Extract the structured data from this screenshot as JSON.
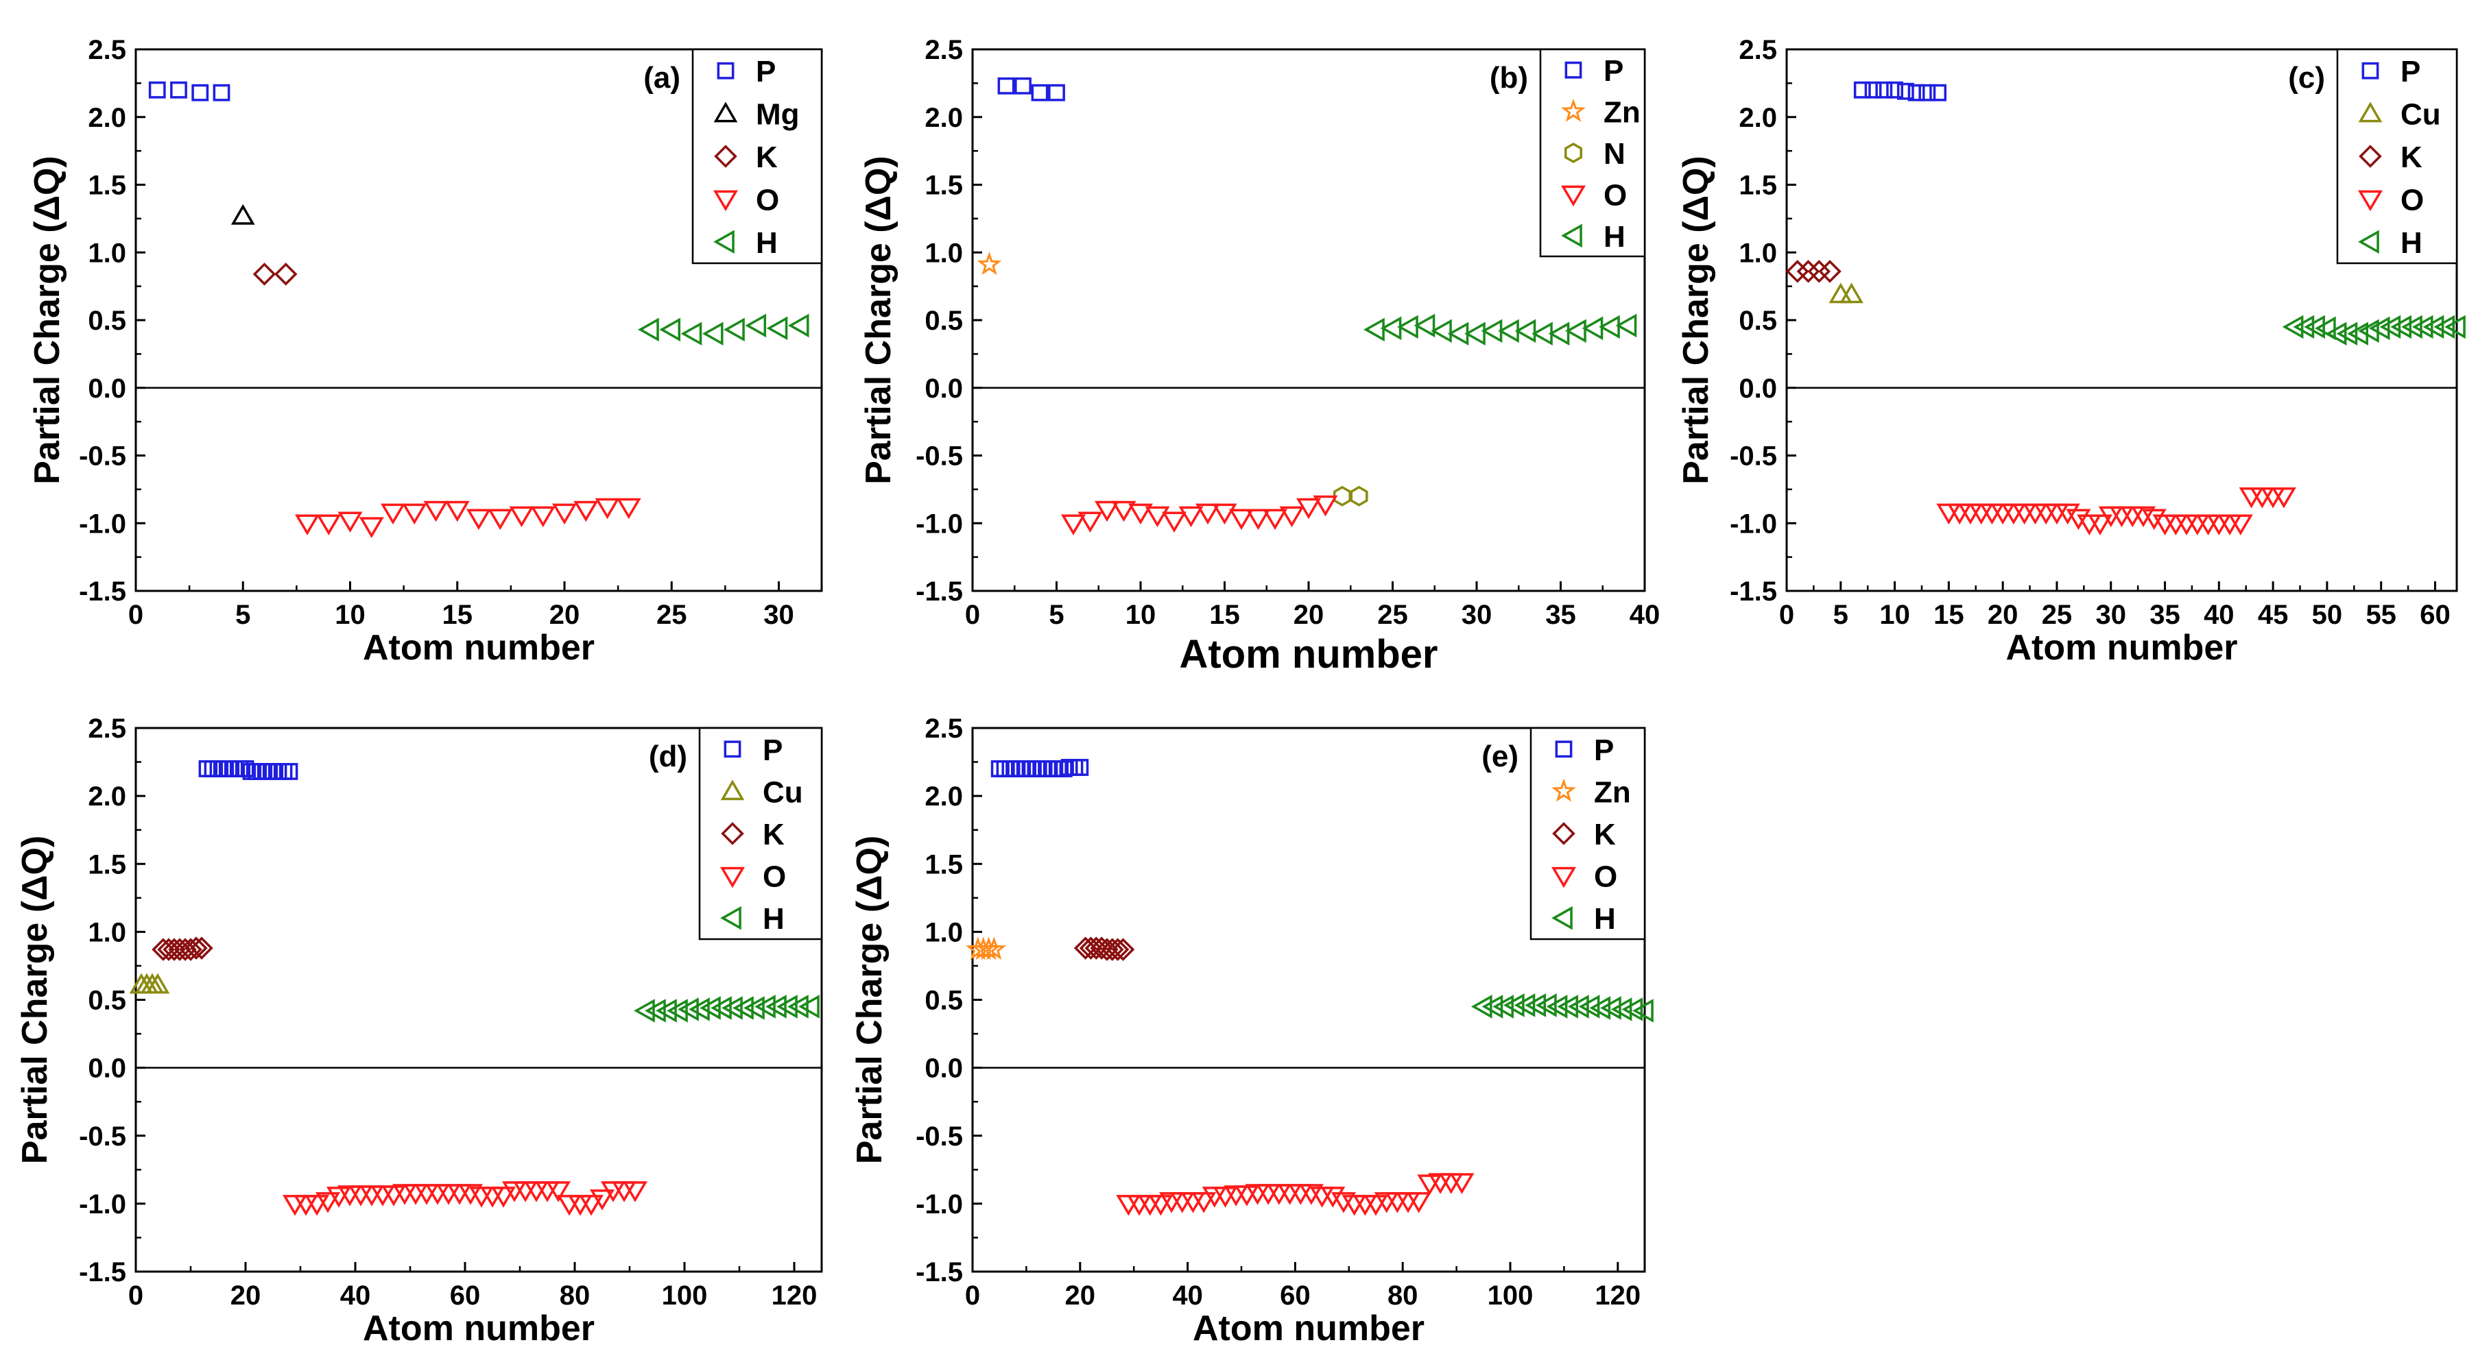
{
  "figure": "Partial charge per atom, five panels",
  "colors": {
    "P": "#1f1fe0",
    "Mg": "#000000",
    "K": "#8b1010",
    "O": "#ff1a1a",
    "H": "#1a8a1a",
    "Zn": "#ff8c1a",
    "N": "#8b8b10",
    "Cu": "#8b8b10"
  },
  "chart_data": [
    {
      "type": "scatter",
      "label": "(a)",
      "xlabel": "Atom number",
      "ylabel": "Partial Charge (ΔQ)",
      "xlim": [
        0,
        32
      ],
      "ylim": [
        -1.5,
        2.5
      ],
      "xticks": [
        0,
        5,
        10,
        15,
        20,
        25,
        30
      ],
      "yticks": [
        -1.5,
        -1.0,
        -0.5,
        0.0,
        0.5,
        1.0,
        1.5,
        2.0,
        2.5
      ],
      "legend": [
        "P",
        "Mg",
        "K",
        "O",
        "H"
      ],
      "series": [
        {
          "name": "P",
          "marker": "square",
          "x": [
            1,
            2,
            3,
            4
          ],
          "y": [
            2.2,
            2.2,
            2.18,
            2.18
          ]
        },
        {
          "name": "Mg",
          "marker": "triangle-up",
          "x": [
            5
          ],
          "y": [
            1.27
          ]
        },
        {
          "name": "K",
          "marker": "diamond",
          "x": [
            6,
            7
          ],
          "y": [
            0.84,
            0.84
          ]
        },
        {
          "name": "O",
          "marker": "triangle-down",
          "x": [
            8,
            9,
            10,
            11,
            12,
            13,
            14,
            15,
            16,
            17,
            18,
            19,
            20,
            21,
            22,
            23
          ],
          "y": [
            -1.0,
            -1.0,
            -0.98,
            -1.02,
            -0.92,
            -0.92,
            -0.9,
            -0.9,
            -0.96,
            -0.96,
            -0.94,
            -0.94,
            -0.92,
            -0.9,
            -0.88,
            -0.88
          ]
        },
        {
          "name": "H",
          "marker": "triangle-left",
          "x": [
            24,
            25,
            26,
            27,
            28,
            29,
            30,
            31
          ],
          "y": [
            0.43,
            0.43,
            0.4,
            0.4,
            0.43,
            0.46,
            0.44,
            0.46
          ]
        }
      ]
    },
    {
      "type": "scatter",
      "label": "(b)",
      "xlabel": "Atom number",
      "ylabel": "Partial Charge (ΔQ)",
      "xlim": [
        0,
        40
      ],
      "ylim": [
        -1.5,
        2.5
      ],
      "xticks": [
        0,
        5,
        10,
        15,
        20,
        25,
        30,
        35,
        40
      ],
      "yticks": [
        -1.5,
        -1.0,
        -0.5,
        0.0,
        0.5,
        1.0,
        1.5,
        2.0,
        2.5
      ],
      "legend": [
        "P",
        "Zn",
        "N",
        "O",
        "H"
      ],
      "series": [
        {
          "name": "P",
          "marker": "square",
          "x": [
            2,
            3,
            4,
            5
          ],
          "y": [
            2.23,
            2.23,
            2.18,
            2.18
          ]
        },
        {
          "name": "Zn",
          "marker": "star",
          "x": [
            1
          ],
          "y": [
            0.91
          ]
        },
        {
          "name": "N",
          "marker": "hexagon",
          "x": [
            22,
            23
          ],
          "y": [
            -0.8,
            -0.8
          ]
        },
        {
          "name": "O",
          "marker": "triangle-down",
          "x": [
            6,
            7,
            8,
            9,
            10,
            11,
            12,
            13,
            14,
            15,
            16,
            17,
            18,
            19,
            20,
            21
          ],
          "y": [
            -1.0,
            -0.98,
            -0.9,
            -0.9,
            -0.92,
            -0.94,
            -0.98,
            -0.94,
            -0.92,
            -0.92,
            -0.96,
            -0.96,
            -0.96,
            -0.94,
            -0.88,
            -0.86
          ]
        },
        {
          "name": "H",
          "marker": "triangle-left",
          "x": [
            24,
            25,
            26,
            27,
            28,
            29,
            30,
            31,
            32,
            33,
            34,
            35,
            36,
            37,
            38,
            39
          ],
          "y": [
            0.43,
            0.44,
            0.45,
            0.46,
            0.42,
            0.4,
            0.4,
            0.42,
            0.42,
            0.42,
            0.4,
            0.4,
            0.42,
            0.44,
            0.45,
            0.46
          ]
        }
      ]
    },
    {
      "type": "scatter",
      "label": "(c)",
      "xlabel": "Atom number",
      "ylabel": "Partial Charge (ΔQ)",
      "xlim": [
        0,
        62
      ],
      "ylim": [
        -1.5,
        2.5
      ],
      "xticks": [
        0,
        5,
        10,
        15,
        20,
        25,
        30,
        35,
        40,
        45,
        50,
        55,
        60
      ],
      "yticks": [
        -1.5,
        -1.0,
        -0.5,
        0.0,
        0.5,
        1.0,
        1.5,
        2.0,
        2.5
      ],
      "legend": [
        "P",
        "Cu",
        "K",
        "O",
        "H"
      ],
      "series": [
        {
          "name": "P",
          "marker": "square",
          "x": [
            7,
            8,
            9,
            10,
            11,
            12,
            13,
            14
          ],
          "y": [
            2.2,
            2.2,
            2.2,
            2.2,
            2.19,
            2.18,
            2.18,
            2.18
          ]
        },
        {
          "name": "Cu",
          "marker": "triangle-up",
          "x": [
            5,
            6
          ],
          "y": [
            0.69,
            0.69
          ]
        },
        {
          "name": "K",
          "marker": "diamond",
          "x": [
            1,
            2,
            3,
            4
          ],
          "y": [
            0.86,
            0.86,
            0.86,
            0.86
          ]
        },
        {
          "name": "O",
          "marker": "triangle-down",
          "x": [
            15,
            16,
            17,
            18,
            19,
            20,
            21,
            22,
            23,
            24,
            25,
            26,
            27,
            28,
            29,
            30,
            31,
            32,
            33,
            34,
            35,
            36,
            37,
            38,
            39,
            40,
            41,
            42,
            43,
            44,
            45,
            46
          ],
          "y": [
            -0.92,
            -0.92,
            -0.92,
            -0.92,
            -0.92,
            -0.92,
            -0.92,
            -0.92,
            -0.92,
            -0.92,
            -0.92,
            -0.92,
            -0.96,
            -1.0,
            -1.0,
            -0.94,
            -0.94,
            -0.94,
            -0.94,
            -0.96,
            -1.0,
            -1.0,
            -1.0,
            -1.0,
            -1.0,
            -1.0,
            -1.0,
            -1.0,
            -0.8,
            -0.8,
            -0.8,
            -0.8
          ]
        },
        {
          "name": "H",
          "marker": "triangle-left",
          "x": [
            47,
            48,
            49,
            50,
            51,
            52,
            53,
            54,
            55,
            56,
            57,
            58,
            59,
            60,
            61,
            62
          ],
          "y": [
            0.45,
            0.45,
            0.45,
            0.44,
            0.4,
            0.4,
            0.4,
            0.42,
            0.44,
            0.45,
            0.45,
            0.45,
            0.45,
            0.45,
            0.45,
            0.45
          ]
        }
      ]
    },
    {
      "type": "scatter",
      "label": "(d)",
      "xlabel": "Atom number",
      "ylabel": "Partial Charge (ΔQ)",
      "xlim": [
        0,
        125
      ],
      "ylim": [
        -1.5,
        2.5
      ],
      "xticks": [
        0,
        20,
        40,
        60,
        80,
        100,
        120
      ],
      "yticks": [
        -1.5,
        -1.0,
        -0.5,
        0.0,
        0.5,
        1.0,
        1.5,
        2.0,
        2.5
      ],
      "legend": [
        "P",
        "Cu",
        "K",
        "O",
        "H"
      ],
      "series": [
        {
          "name": "P",
          "marker": "square",
          "x": [
            13,
            14,
            15,
            16,
            17,
            18,
            19,
            20,
            21,
            22,
            23,
            24,
            25,
            26,
            27,
            28
          ],
          "y": [
            2.2,
            2.2,
            2.2,
            2.2,
            2.2,
            2.2,
            2.2,
            2.2,
            2.18,
            2.18,
            2.18,
            2.18,
            2.18,
            2.18,
            2.18,
            2.18
          ]
        },
        {
          "name": "Cu",
          "marker": "triangle-up",
          "x": [
            1,
            2,
            3,
            4
          ],
          "y": [
            0.61,
            0.61,
            0.61,
            0.61
          ]
        },
        {
          "name": "K",
          "marker": "diamond",
          "x": [
            5,
            6,
            7,
            8,
            9,
            10,
            11,
            12
          ],
          "y": [
            0.87,
            0.87,
            0.87,
            0.87,
            0.87,
            0.87,
            0.88,
            0.88
          ]
        },
        {
          "name": "O",
          "marker": "triangle-down",
          "x": [
            29,
            31,
            33,
            35,
            37,
            39,
            41,
            43,
            45,
            47,
            49,
            51,
            53,
            55,
            57,
            59,
            61,
            63,
            65,
            67,
            69,
            71,
            73,
            75,
            77,
            79,
            81,
            83,
            85,
            87,
            89,
            91
          ],
          "y": [
            -1.0,
            -1.0,
            -1.0,
            -0.98,
            -0.94,
            -0.93,
            -0.93,
            -0.93,
            -0.93,
            -0.93,
            -0.92,
            -0.92,
            -0.92,
            -0.92,
            -0.92,
            -0.92,
            -0.92,
            -0.94,
            -0.94,
            -0.94,
            -0.9,
            -0.9,
            -0.9,
            -0.9,
            -0.9,
            -1.0,
            -1.0,
            -1.0,
            -0.96,
            -0.9,
            -0.9,
            -0.9
          ]
        },
        {
          "name": "H",
          "marker": "triangle-left",
          "x": [
            93,
            95,
            97,
            99,
            101,
            103,
            105,
            107,
            109,
            111,
            113,
            115,
            117,
            119,
            121,
            123
          ],
          "y": [
            0.42,
            0.42,
            0.42,
            0.42,
            0.43,
            0.43,
            0.44,
            0.44,
            0.44,
            0.44,
            0.44,
            0.45,
            0.45,
            0.45,
            0.45,
            0.45
          ]
        }
      ]
    },
    {
      "type": "scatter",
      "label": "(e)",
      "xlabel": "Atom number",
      "ylabel": "Partial Charge (ΔQ)",
      "xlim": [
        0,
        125
      ],
      "ylim": [
        -1.5,
        2.5
      ],
      "xticks": [
        0,
        20,
        40,
        60,
        80,
        100,
        120
      ],
      "yticks": [
        -1.5,
        -1.0,
        -0.5,
        0.0,
        0.5,
        1.0,
        1.5,
        2.0,
        2.5
      ],
      "legend": [
        "P",
        "Zn",
        "K",
        "O",
        "H"
      ],
      "series": [
        {
          "name": "P",
          "marker": "square",
          "x": [
            5,
            6,
            7,
            8,
            9,
            10,
            11,
            12,
            13,
            14,
            15,
            16,
            17,
            18,
            19,
            20
          ],
          "y": [
            2.2,
            2.2,
            2.2,
            2.2,
            2.2,
            2.2,
            2.2,
            2.2,
            2.2,
            2.2,
            2.2,
            2.2,
            2.2,
            2.21,
            2.21,
            2.21
          ]
        },
        {
          "name": "Zn",
          "marker": "star",
          "x": [
            1,
            2,
            3,
            4
          ],
          "y": [
            0.87,
            0.87,
            0.87,
            0.87
          ]
        },
        {
          "name": "K",
          "marker": "diamond",
          "x": [
            21,
            22,
            23,
            24,
            25,
            26,
            27,
            28
          ],
          "y": [
            0.88,
            0.88,
            0.88,
            0.88,
            0.87,
            0.87,
            0.87,
            0.87
          ]
        },
        {
          "name": "O",
          "marker": "triangle-down",
          "x": [
            29,
            31,
            33,
            35,
            37,
            39,
            41,
            43,
            45,
            47,
            49,
            51,
            53,
            55,
            57,
            59,
            61,
            63,
            65,
            67,
            69,
            71,
            73,
            75,
            77,
            79,
            81,
            83,
            85,
            87,
            89,
            91
          ],
          "y": [
            -1.0,
            -1.0,
            -1.0,
            -1.0,
            -0.98,
            -0.98,
            -0.98,
            -0.98,
            -0.94,
            -0.94,
            -0.93,
            -0.93,
            -0.92,
            -0.92,
            -0.92,
            -0.92,
            -0.92,
            -0.92,
            -0.94,
            -0.94,
            -0.98,
            -1.0,
            -1.0,
            -1.0,
            -0.98,
            -0.98,
            -0.98,
            -0.98,
            -0.85,
            -0.84,
            -0.84,
            -0.84
          ]
        },
        {
          "name": "H",
          "marker": "triangle-left",
          "x": [
            95,
            97,
            99,
            101,
            103,
            105,
            107,
            109,
            111,
            113,
            115,
            117,
            119,
            121,
            123,
            125
          ],
          "y": [
            0.45,
            0.45,
            0.45,
            0.46,
            0.46,
            0.46,
            0.46,
            0.45,
            0.45,
            0.45,
            0.45,
            0.44,
            0.44,
            0.43,
            0.43,
            0.42
          ]
        }
      ]
    }
  ]
}
